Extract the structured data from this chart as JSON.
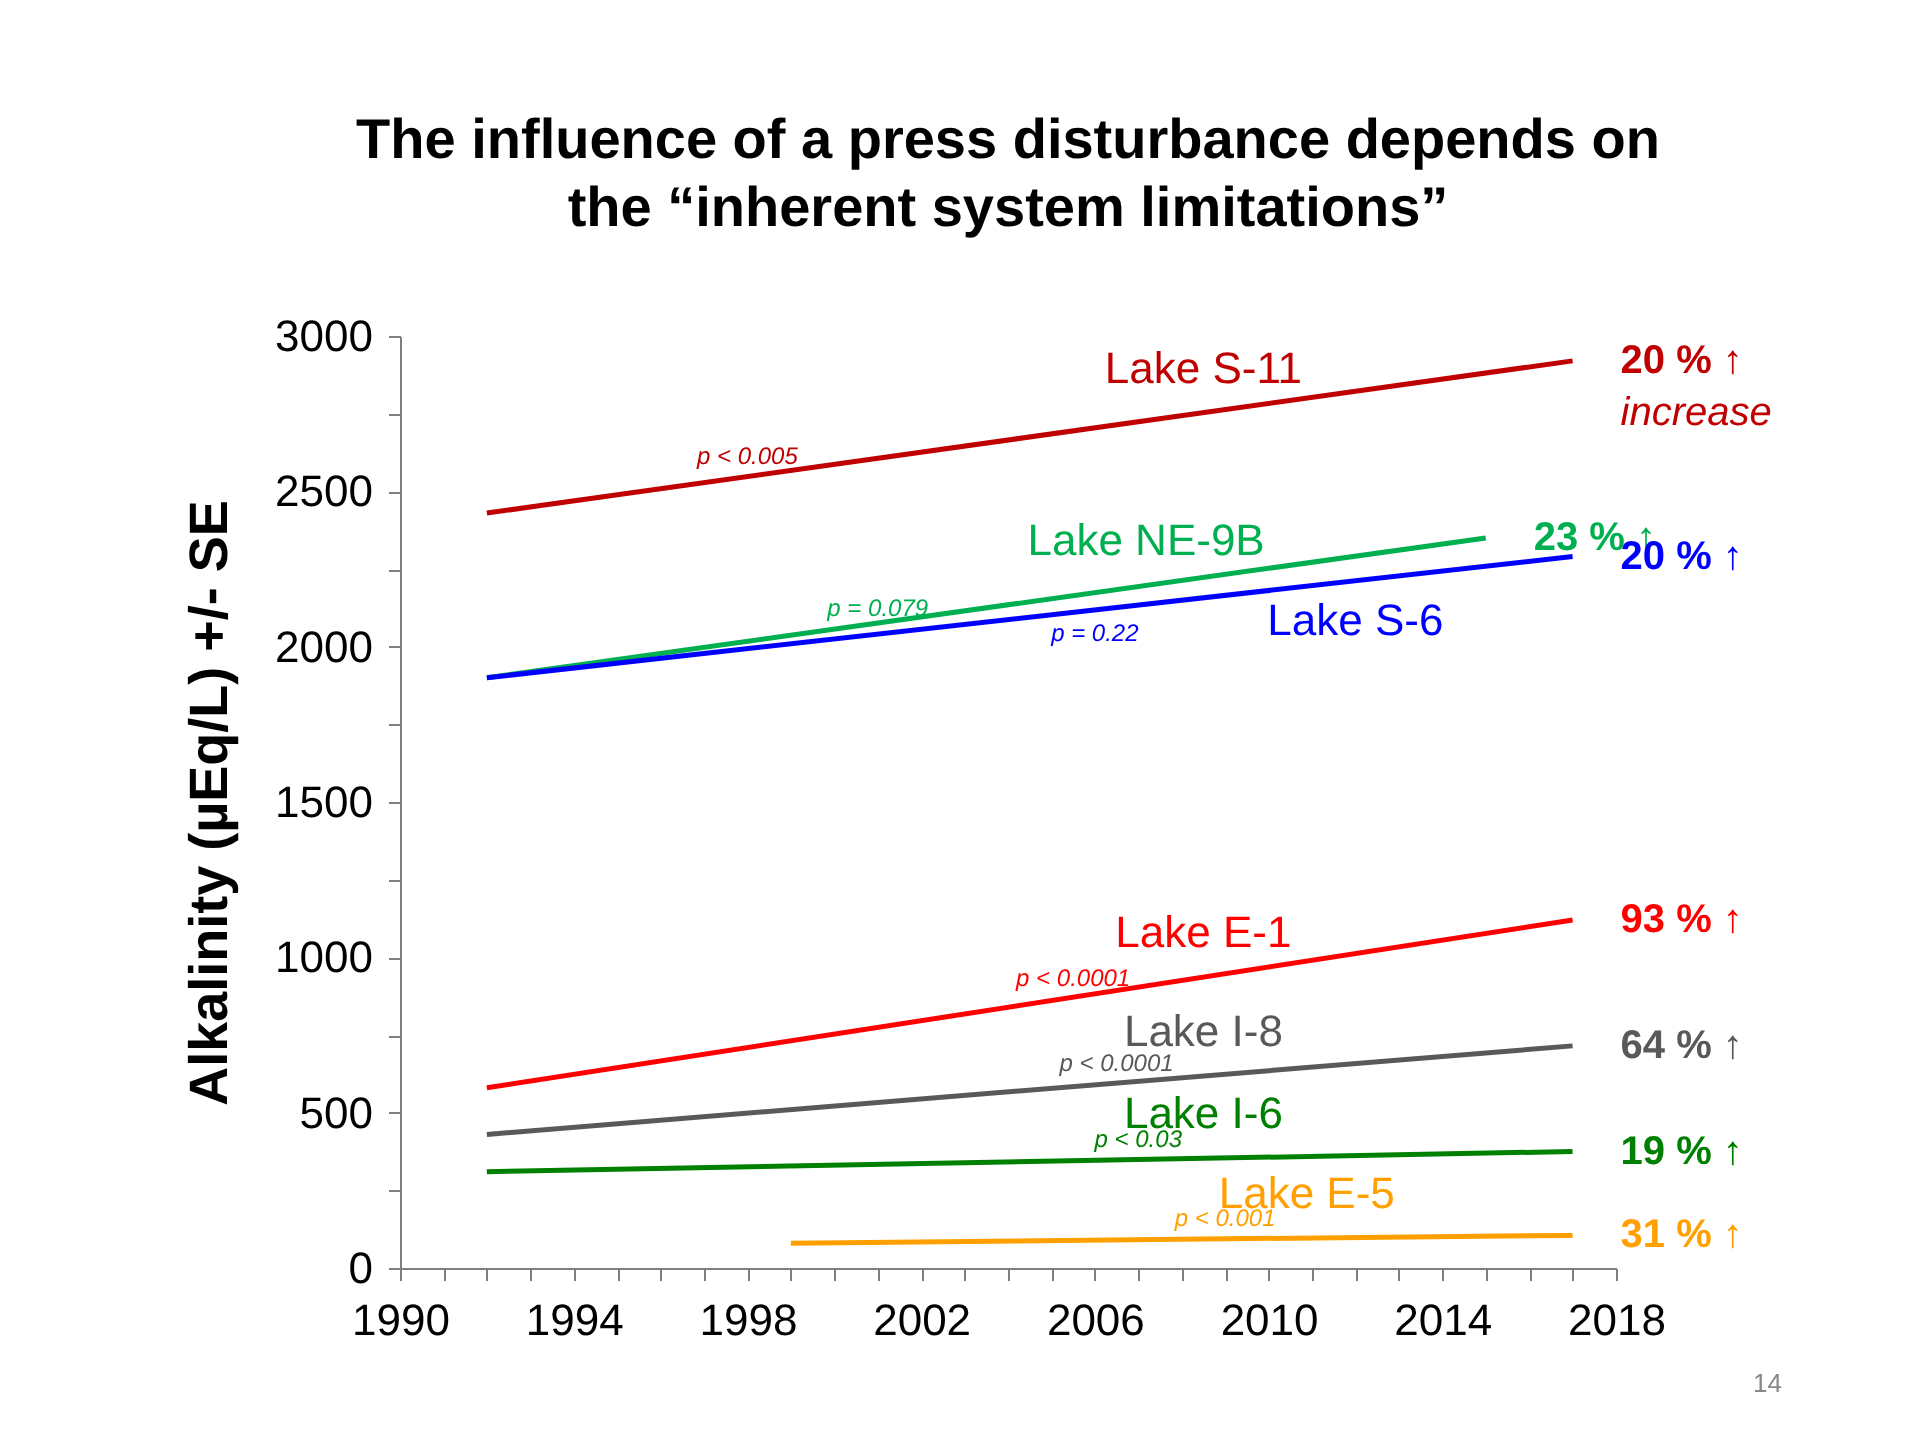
{
  "chart_data": {
    "type": "line",
    "title": "The influence of a press disturbance depends on the “inherent system limitations”",
    "ylabel": "Alkalinity (µEq/L) +/- SE",
    "xlim": [
      1990,
      2018
    ],
    "xticks": [
      1990,
      {
        "value": 1991,
        "label": null
      },
      {
        "value": 1992,
        "label": null
      },
      {
        "value": 1993,
        "label": null
      },
      1994,
      {
        "value": 1995,
        "label": null
      },
      {
        "value": 1996,
        "label": null
      },
      {
        "value": 1997,
        "label": null
      },
      1998,
      {
        "value": 1999,
        "label": null
      },
      {
        "value": 2000,
        "label": null
      },
      {
        "value": 2001,
        "label": null
      },
      2002,
      {
        "value": 2003,
        "label": null
      },
      {
        "value": 2004,
        "label": null
      },
      {
        "value": 2005,
        "label": null
      },
      2006,
      {
        "value": 2007,
        "label": null
      },
      {
        "value": 2008,
        "label": null
      },
      {
        "value": 2009,
        "label": null
      },
      2010,
      {
        "value": 2011,
        "label": null
      },
      {
        "value": 2012,
        "label": null
      },
      {
        "value": 2013,
        "label": null
      },
      2014,
      {
        "value": 2015,
        "label": null
      },
      {
        "value": 2016,
        "label": null
      },
      {
        "value": 2017,
        "label": null
      },
      2018
    ],
    "ylim": [
      0,
      3000
    ],
    "yticks": [
      0,
      {
        "value": 250,
        "label": null
      },
      500,
      {
        "value": 750,
        "label": null
      },
      1000,
      {
        "value": 1250,
        "label": null
      },
      1500,
      {
        "value": 1750,
        "label": null
      },
      2000,
      {
        "value": 2250,
        "label": null
      },
      2500,
      {
        "value": 2750,
        "label": null
      },
      3000
    ],
    "grid": false,
    "legend": false,
    "marker": "none",
    "line_style": "solid",
    "series": [
      {
        "name": "Lake S-11",
        "color": "#c00000",
        "x": [
          1992,
          2017
        ],
        "values": [
          2430,
          2920
        ]
      },
      {
        "name": "Lake NE-9B",
        "color": "#00b050",
        "x": [
          1992,
          2015
        ],
        "values": [
          1900,
          2350
        ]
      },
      {
        "name": "Lake S-6",
        "color": "#0000ff",
        "x": [
          1992,
          2017
        ],
        "values": [
          1900,
          2290
        ]
      },
      {
        "name": "Lake E-1",
        "color": "#ff0000",
        "x": [
          1992,
          2017
        ],
        "values": [
          580,
          1120
        ]
      },
      {
        "name": "Lake I-8",
        "color": "#595959",
        "x": [
          1992,
          2017
        ],
        "values": [
          430,
          715
        ]
      },
      {
        "name": "Lake I-6",
        "color": "#008000",
        "x": [
          1992,
          2017
        ],
        "values": [
          310,
          375
        ]
      },
      {
        "name": "Lake E-5",
        "color": "#ffa000",
        "x": [
          1999,
          2017
        ],
        "values": [
          80,
          105
        ]
      }
    ],
    "annotations": [
      {
        "text": "p < 0.005",
        "x": 1998,
        "y": 2550
      },
      {
        "text": "p = 0.079",
        "x": 2001,
        "y": 2060
      },
      {
        "text": "p = 0.22",
        "x": 2006,
        "y": 2120
      },
      {
        "text": "p < 0.0001",
        "x": 2005.5,
        "y": 870
      },
      {
        "text": "p < 0.0001",
        "x": 2006.5,
        "y": 595
      },
      {
        "text": "p < 0.03",
        "x": 2007,
        "y": 350
      },
      {
        "text": "p < 0.001",
        "x": 2009,
        "y": 95
      },
      {
        "text": "20 % ↑",
        "x": 2017,
        "y": 2920
      },
      {
        "text": "increase",
        "x": 2017,
        "y": 2920
      },
      {
        "text": "23 % ↑",
        "x": 2015,
        "y": 2350
      },
      {
        "text": "20 % ↑",
        "x": 2017,
        "y": 2290
      },
      {
        "text": "93 % ↑",
        "x": 2017,
        "y": 1120
      },
      {
        "text": "64 % ↑",
        "x": 2017,
        "y": 715
      },
      {
        "text": "19 % ↑",
        "x": 2017,
        "y": 375
      },
      {
        "text": "31 % ↑",
        "x": 2017,
        "y": 105
      },
      "14"
    ]
  }
}
